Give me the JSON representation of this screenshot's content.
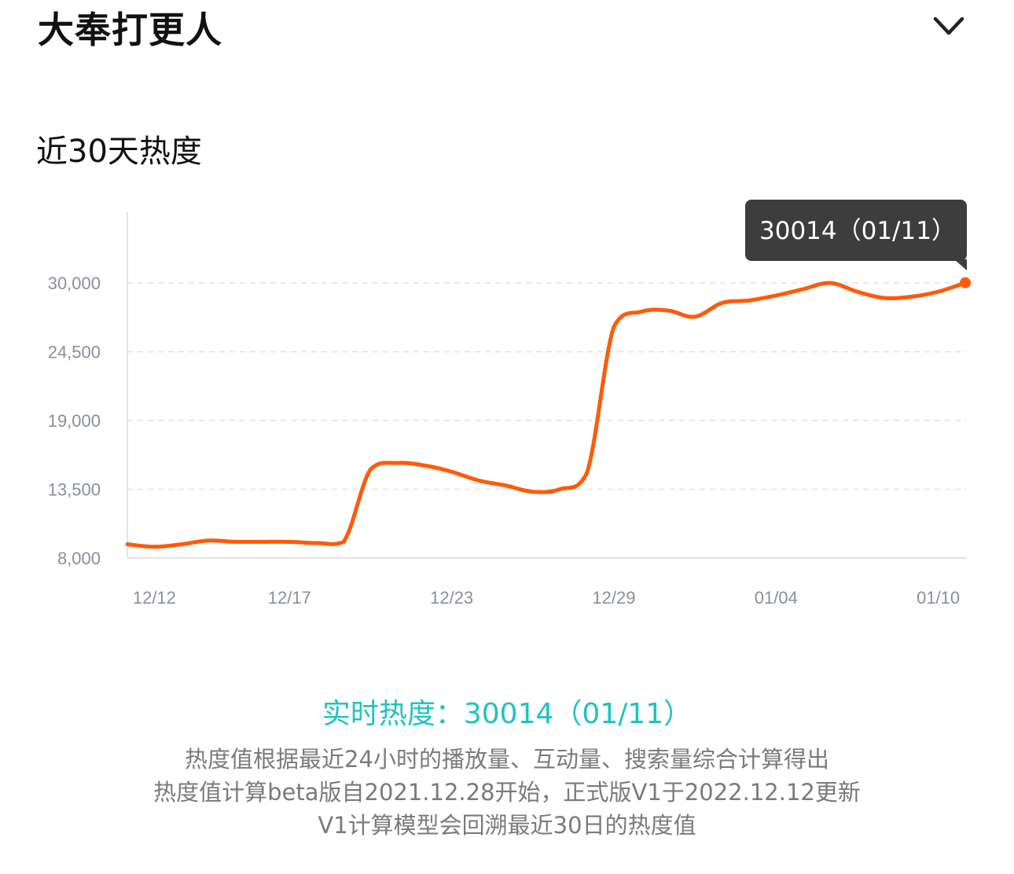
{
  "header": {
    "title": "大奉打更人",
    "toggle_icon": "chevron-down-icon"
  },
  "section_title": "近30天热度",
  "chart_data": {
    "type": "line",
    "title": "近30天热度",
    "x_tick_labels": [
      "12/12",
      "12/17",
      "12/23",
      "12/29",
      "01/04",
      "01/10"
    ],
    "y_tick_labels": [
      "30,000",
      "24,500",
      "19,000",
      "13,500",
      "8,000"
    ],
    "ylim": [
      8000,
      30000
    ],
    "grid": true,
    "series": [
      {
        "color": "#ff5a0a",
        "x": [
          "12/11",
          "12/12",
          "12/13",
          "12/14",
          "12/15",
          "12/16",
          "12/17",
          "12/18",
          "12/19",
          "12/20",
          "12/21",
          "12/22",
          "12/23",
          "12/24",
          "12/25",
          "12/26",
          "12/27",
          "12/28",
          "12/29",
          "12/30",
          "12/31",
          "01/01",
          "01/02",
          "01/03",
          "01/04",
          "01/05",
          "01/06",
          "01/07",
          "01/08",
          "01/09",
          "01/10",
          "01/11"
        ],
        "values": [
          9100,
          8900,
          9100,
          9400,
          9300,
          9300,
          9300,
          9200,
          9300,
          15100,
          15600,
          15400,
          14900,
          14200,
          13800,
          13300,
          13500,
          14800,
          26500,
          27700,
          27800,
          27300,
          28400,
          28600,
          29000,
          29500,
          30000,
          29300,
          28800,
          28900,
          29300,
          30014
        ]
      }
    ],
    "tooltip": "30014（01/11）"
  },
  "footer": {
    "realtime": "实时热度：30014（01/11）",
    "notes": [
      "热度值根据最近24小时的播放量、互动量、搜索量综合计算得出",
      "热度值计算beta版自2021.12.28开始，正式版V1于2022.12.12更新",
      "V1计算模型会回溯最近30日的热度值"
    ]
  }
}
